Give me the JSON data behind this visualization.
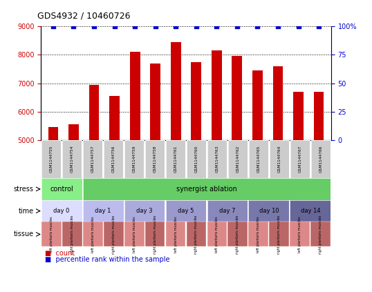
{
  "title": "GDS4932 / 10460726",
  "samples": [
    "GSM1144755",
    "GSM1144754",
    "GSM1144757",
    "GSM1144756",
    "GSM1144759",
    "GSM1144758",
    "GSM1144761",
    "GSM1144760",
    "GSM1144763",
    "GSM1144762",
    "GSM1144765",
    "GSM1144764",
    "GSM1144767",
    "GSM1144766"
  ],
  "bar_values": [
    5450,
    5550,
    6950,
    6550,
    8100,
    7700,
    8450,
    7750,
    8150,
    7950,
    7450,
    7600,
    6700,
    6700
  ],
  "percentile_values": [
    100,
    100,
    100,
    100,
    100,
    100,
    100,
    100,
    100,
    100,
    100,
    100,
    100,
    100
  ],
  "bar_color": "#cc0000",
  "percentile_color": "#0000cc",
  "ylim_left": [
    5000,
    9000
  ],
  "ylim_right": [
    0,
    100
  ],
  "yticks_left": [
    5000,
    6000,
    7000,
    8000,
    9000
  ],
  "yticks_right": [
    0,
    25,
    50,
    75,
    100
  ],
  "ytick_labels_right": [
    "0",
    "25",
    "50",
    "75",
    "100%"
  ],
  "stress_groups": [
    {
      "text": "control",
      "start": 0,
      "end": 2,
      "color": "#88ee88"
    },
    {
      "text": "synergist ablation",
      "start": 2,
      "end": 14,
      "color": "#66cc66"
    }
  ],
  "time_groups": [
    {
      "text": "day 0",
      "start": 0,
      "end": 2,
      "color": "#ddddff"
    },
    {
      "text": "day 1",
      "start": 2,
      "end": 4,
      "color": "#bbbbee"
    },
    {
      "text": "day 3",
      "start": 4,
      "end": 6,
      "color": "#aaaadd"
    },
    {
      "text": "day 5",
      "start": 6,
      "end": 8,
      "color": "#9999cc"
    },
    {
      "text": "day 7",
      "start": 8,
      "end": 10,
      "color": "#8888bb"
    },
    {
      "text": "day 10",
      "start": 10,
      "end": 12,
      "color": "#7777aa"
    },
    {
      "text": "day 14",
      "start": 12,
      "end": 14,
      "color": "#666699"
    }
  ],
  "tissue_left_color": "#dd8888",
  "tissue_right_color": "#bb6666",
  "tissue_left_label": "left plantaris muscles",
  "tissue_right_label": "right plantaris muscles",
  "sample_bg_color": "#cccccc",
  "background_color": "#ffffff",
  "bar_color_legend": "#cc0000",
  "pct_color_legend": "#0000cc"
}
